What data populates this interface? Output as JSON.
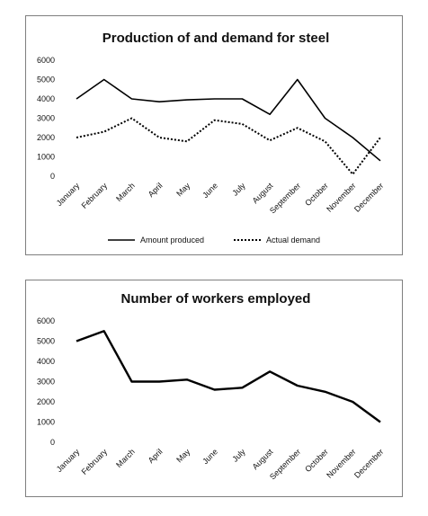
{
  "chart_data": [
    {
      "type": "line",
      "title": "Production of and demand for steel",
      "categories": [
        "January",
        "February",
        "March",
        "April",
        "May",
        "June",
        "July",
        "August",
        "September",
        "October",
        "November",
        "December"
      ],
      "ylim": [
        0,
        6000
      ],
      "yticks": [
        0,
        1000,
        2000,
        3000,
        4000,
        5000,
        6000
      ],
      "grid": false,
      "legend_position": "bottom",
      "series": [
        {
          "name": "Amount produced",
          "style": "solid",
          "values": [
            4000,
            5000,
            4000,
            3850,
            3950,
            4000,
            4000,
            3200,
            5000,
            3000,
            2000,
            800
          ]
        },
        {
          "name": "Actual demand",
          "style": "dotted",
          "values": [
            2000,
            2300,
            3000,
            2000,
            1800,
            2900,
            2700,
            1850,
            2500,
            1800,
            100,
            2000
          ]
        }
      ]
    },
    {
      "type": "line",
      "title": "Number of workers employed",
      "categories": [
        "January",
        "February",
        "March",
        "April",
        "May",
        "June",
        "July",
        "August",
        "September",
        "October",
        "November",
        "December"
      ],
      "ylim": [
        0,
        6000
      ],
      "yticks": [
        0,
        1000,
        2000,
        3000,
        4000,
        5000,
        6000
      ],
      "grid": false,
      "series": [
        {
          "style": "solid",
          "values": [
            5000,
            5500,
            3000,
            3000,
            3100,
            2600,
            2700,
            3500,
            2800,
            2500,
            2000,
            1000
          ]
        }
      ]
    }
  ],
  "colors": {
    "line": "#000000",
    "border": "#7f7f7f"
  }
}
